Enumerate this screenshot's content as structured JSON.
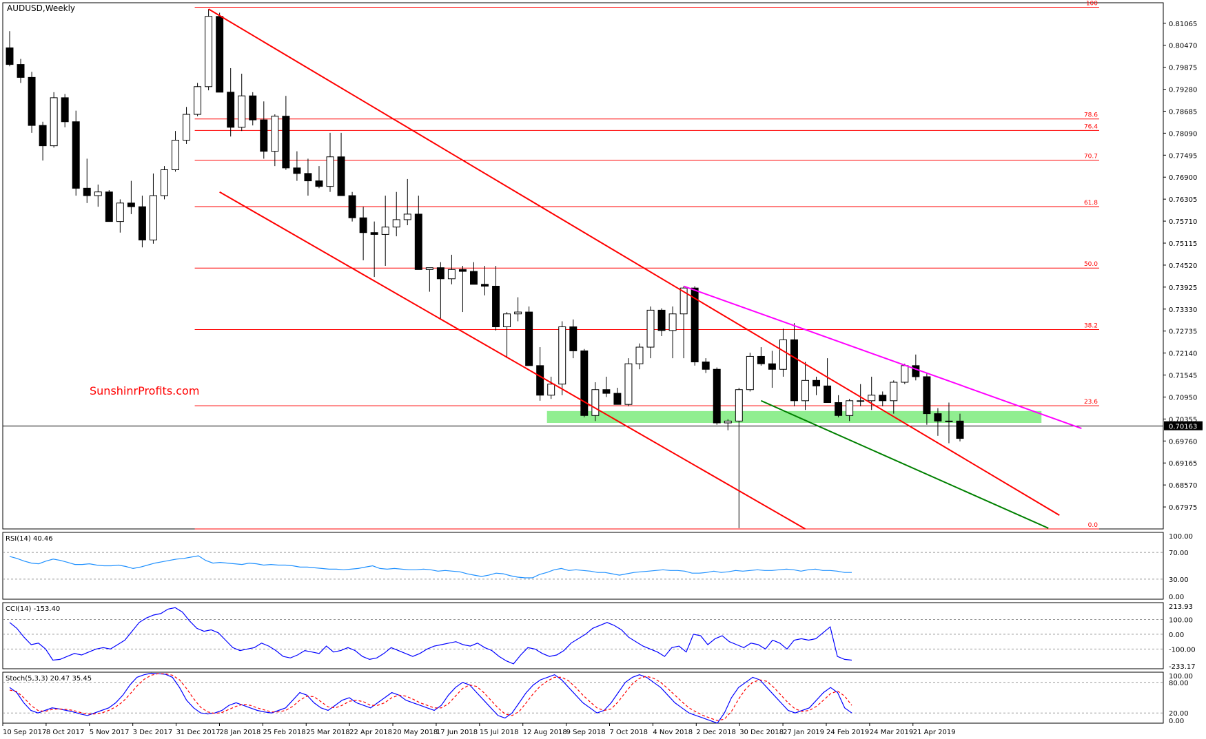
{
  "chart_data": {
    "type": "candlestick",
    "title": "AUDUSD,Weekly",
    "watermark": "SunshinrProfits.com",
    "price_axis": {
      "range": [
        0.6738,
        0.8162
      ],
      "ticks": [
        "0.81065",
        "0.80470",
        "0.79875",
        "0.79280",
        "0.78685",
        "0.78090",
        "0.77495",
        "0.76900",
        "0.76305",
        "0.75710",
        "0.75115",
        "0.74520",
        "0.73925",
        "0.73330",
        "0.72735",
        "0.72140",
        "0.71545",
        "0.70950",
        "0.70355",
        "0.69760",
        "0.69165",
        "0.68570",
        "0.67975"
      ],
      "current_price": "0.70163"
    },
    "x_labels": [
      "10 Sep 2017",
      "8 Oct 2017",
      "5 Nov 2017",
      "3 Dec 2017",
      "31 Dec 2017",
      "28 Jan 2018",
      "25 Feb 2018",
      "25 Mar 2018",
      "22 Apr 2018",
      "20 May 2018",
      "17 Jun 2018",
      "15 Jul 2018",
      "12 Aug 2018",
      "9 Sep 2018",
      "7 Oct 2018",
      "4 Nov 2018",
      "2 Dec 2018",
      "30 Dec 2018",
      "27 Jan 2019",
      "24 Feb 2019",
      "24 Mar 2019",
      "21 Apr 2019"
    ],
    "candles": [
      [
        0.804,
        0.8085,
        0.799,
        0.7995
      ],
      [
        0.7995,
        0.801,
        0.7945,
        0.796
      ],
      [
        0.796,
        0.7975,
        0.781,
        0.783
      ],
      [
        0.783,
        0.784,
        0.7735,
        0.7775
      ],
      [
        0.7775,
        0.792,
        0.777,
        0.7905
      ],
      [
        0.7905,
        0.7915,
        0.7825,
        0.784
      ],
      [
        0.784,
        0.787,
        0.764,
        0.766
      ],
      [
        0.766,
        0.774,
        0.762,
        0.764
      ],
      [
        0.764,
        0.767,
        0.761,
        0.765
      ],
      [
        0.765,
        0.7655,
        0.757,
        0.757
      ],
      [
        0.757,
        0.763,
        0.754,
        0.762
      ],
      [
        0.762,
        0.768,
        0.759,
        0.761
      ],
      [
        0.761,
        0.764,
        0.75,
        0.752
      ],
      [
        0.752,
        0.77,
        0.751,
        0.764
      ],
      [
        0.764,
        0.772,
        0.763,
        0.771
      ],
      [
        0.771,
        0.7815,
        0.7705,
        0.779
      ],
      [
        0.779,
        0.788,
        0.778,
        0.786
      ],
      [
        0.786,
        0.7945,
        0.7855,
        0.7935
      ],
      [
        0.7935,
        0.8145,
        0.7925,
        0.8125
      ],
      [
        0.8125,
        0.8135,
        0.792,
        0.792
      ],
      [
        0.792,
        0.7985,
        0.78,
        0.7825
      ],
      [
        0.7825,
        0.797,
        0.7815,
        0.791
      ],
      [
        0.791,
        0.792,
        0.783,
        0.7845
      ],
      [
        0.7845,
        0.7895,
        0.774,
        0.776
      ],
      [
        0.776,
        0.786,
        0.772,
        0.7855
      ],
      [
        0.7855,
        0.791,
        0.771,
        0.7715
      ],
      [
        0.7715,
        0.776,
        0.768,
        0.77
      ],
      [
        0.77,
        0.774,
        0.764,
        0.768
      ],
      [
        0.768,
        0.772,
        0.766,
        0.7665
      ],
      [
        0.7665,
        0.781,
        0.765,
        0.7745
      ],
      [
        0.7745,
        0.781,
        0.764,
        0.764
      ],
      [
        0.764,
        0.765,
        0.757,
        0.758
      ],
      [
        0.758,
        0.761,
        0.7465,
        0.754
      ],
      [
        0.754,
        0.757,
        0.742,
        0.7535
      ],
      [
        0.7535,
        0.764,
        0.745,
        0.7555
      ],
      [
        0.7555,
        0.765,
        0.753,
        0.7575
      ],
      [
        0.7575,
        0.7685,
        0.756,
        0.759
      ],
      [
        0.759,
        0.764,
        0.744,
        0.744
      ],
      [
        0.744,
        0.7445,
        0.738,
        0.7445
      ],
      [
        0.7445,
        0.746,
        0.7305,
        0.7415
      ],
      [
        0.7415,
        0.748,
        0.74,
        0.744
      ],
      [
        0.744,
        0.745,
        0.7325,
        0.7435
      ],
      [
        0.7435,
        0.746,
        0.74,
        0.74
      ],
      [
        0.74,
        0.745,
        0.737,
        0.7395
      ],
      [
        0.7395,
        0.745,
        0.7275,
        0.7285
      ],
      [
        0.7285,
        0.7325,
        0.72,
        0.732
      ],
      [
        0.732,
        0.7365,
        0.73,
        0.7325
      ],
      [
        0.7325,
        0.734,
        0.718,
        0.718
      ],
      [
        0.718,
        0.723,
        0.7085,
        0.71
      ],
      [
        0.71,
        0.715,
        0.709,
        0.713
      ],
      [
        0.713,
        0.73,
        0.71,
        0.7285
      ],
      [
        0.7285,
        0.7305,
        0.72,
        0.722
      ],
      [
        0.722,
        0.7225,
        0.704,
        0.7045
      ],
      [
        0.7045,
        0.7135,
        0.703,
        0.7115
      ],
      [
        0.7115,
        0.715,
        0.7095,
        0.7105
      ],
      [
        0.7105,
        0.712,
        0.708,
        0.7075
      ],
      [
        0.7075,
        0.72,
        0.707,
        0.7185
      ],
      [
        0.7185,
        0.724,
        0.717,
        0.723
      ],
      [
        0.723,
        0.734,
        0.72,
        0.733
      ],
      [
        0.733,
        0.7335,
        0.726,
        0.7275
      ],
      [
        0.7275,
        0.734,
        0.72,
        0.732
      ],
      [
        0.732,
        0.7395,
        0.72,
        0.739
      ],
      [
        0.739,
        0.7395,
        0.718,
        0.719
      ],
      [
        0.719,
        0.72,
        0.716,
        0.717
      ],
      [
        0.717,
        0.7175,
        0.702,
        0.7025
      ],
      [
        0.7025,
        0.7035,
        0.7005,
        0.703
      ],
      [
        0.703,
        0.712,
        0.674,
        0.7115
      ],
      [
        0.7115,
        0.7215,
        0.711,
        0.7205
      ],
      [
        0.7205,
        0.723,
        0.718,
        0.7185
      ],
      [
        0.7185,
        0.722,
        0.712,
        0.717
      ],
      [
        0.717,
        0.728,
        0.715,
        0.725
      ],
      [
        0.725,
        0.7295,
        0.707,
        0.7085
      ],
      [
        0.7085,
        0.719,
        0.706,
        0.714
      ],
      [
        0.714,
        0.715,
        0.71,
        0.7125
      ],
      [
        0.7125,
        0.72,
        0.7085,
        0.708
      ],
      [
        0.708,
        0.71,
        0.704,
        0.7045
      ],
      [
        0.7045,
        0.709,
        0.703,
        0.7085
      ],
      [
        0.7085,
        0.713,
        0.707,
        0.7085
      ],
      [
        0.7085,
        0.715,
        0.706,
        0.71
      ],
      [
        0.71,
        0.711,
        0.707,
        0.7085
      ],
      [
        0.7085,
        0.714,
        0.705,
        0.7135
      ],
      [
        0.7135,
        0.7185,
        0.713,
        0.718
      ],
      [
        0.718,
        0.721,
        0.714,
        0.715
      ],
      [
        0.715,
        0.716,
        0.702,
        0.705
      ],
      [
        0.705,
        0.7065,
        0.699,
        0.703
      ],
      [
        0.703,
        0.708,
        0.697,
        0.703
      ],
      [
        0.703,
        0.705,
        0.6975,
        0.6983
      ]
    ],
    "fibonacci": {
      "high": 0.815,
      "low": 0.6738,
      "levels": [
        {
          "label": "100",
          "value": 0.815
        },
        {
          "label": "78.6",
          "value": 0.78475
        },
        {
          "label": "76.4",
          "value": 0.78165
        },
        {
          "label": "70.7",
          "value": 0.7736
        },
        {
          "label": "61.8",
          "value": 0.76104
        },
        {
          "label": "50.0",
          "value": 0.7444
        },
        {
          "label": "38.2",
          "value": 0.72776
        },
        {
          "label": "23.6",
          "value": 0.70715
        },
        {
          "label": "0.0",
          "value": 0.6738
        }
      ]
    },
    "support_zone": [
      0.7025,
      0.7057
    ],
    "trendlines": [
      {
        "name": "channel-upper",
        "color": "#ff0000",
        "from": [
          18,
          0.8145
        ],
        "to": [
          95,
          0.6775
        ]
      },
      {
        "name": "channel-lower",
        "color": "#ff0000",
        "from": [
          19,
          0.765
        ],
        "to": [
          72,
          0.6738
        ]
      },
      {
        "name": "resistance",
        "color": "#ff00ff",
        "from": [
          61,
          0.7395
        ],
        "to": [
          97,
          0.701
        ]
      },
      {
        "name": "green-support",
        "color": "#008000",
        "from": [
          68,
          0.7085
        ],
        "to": [
          94,
          0.674
        ]
      }
    ],
    "rsi": {
      "label": "RSI(14) 40.46",
      "ticks": [
        "100.00",
        "70.00",
        "30.00",
        "0.00"
      ],
      "range": [
        0,
        100
      ],
      "levels": [
        70,
        30
      ],
      "values": [
        64,
        61,
        57,
        54,
        53,
        57,
        60,
        58,
        55,
        52,
        52,
        53,
        51,
        50,
        50,
        51,
        49,
        46,
        48,
        51,
        54,
        56,
        58,
        60,
        61,
        63,
        65,
        58,
        54,
        55,
        54,
        53,
        52,
        54,
        53,
        51,
        52,
        51,
        51,
        50,
        48,
        48,
        47,
        46,
        45,
        45,
        44,
        45,
        46,
        48,
        50,
        46,
        45,
        46,
        45,
        44,
        44,
        45,
        44,
        42,
        43,
        42,
        41,
        38,
        36,
        34,
        36,
        39,
        38,
        35,
        33,
        32,
        32,
        37,
        40,
        44,
        46,
        43,
        44,
        43,
        42,
        40,
        40,
        38,
        36,
        38,
        40,
        41,
        42,
        43,
        44,
        43,
        43,
        42,
        39,
        39,
        40,
        42,
        40,
        41,
        43,
        42,
        43,
        44,
        43,
        43,
        44,
        45,
        44,
        42,
        44,
        45,
        43,
        43,
        42,
        40,
        40
      ]
    },
    "cci": {
      "label": "CCI(14) -153.40",
      "ticks": [
        "213.93",
        "100.00",
        "0.00",
        "-100.00",
        "-233.17"
      ],
      "range": [
        -233.17,
        213.93
      ],
      "levels": [
        100,
        0,
        -100
      ],
      "values": [
        80,
        40,
        -20,
        -70,
        -60,
        -100,
        -175,
        -170,
        -150,
        -130,
        -140,
        -120,
        -100,
        -90,
        -100,
        -70,
        -40,
        20,
        80,
        110,
        130,
        140,
        170,
        180,
        150,
        90,
        40,
        20,
        30,
        10,
        -40,
        -90,
        -110,
        -100,
        -90,
        -60,
        -80,
        -110,
        -150,
        -160,
        -140,
        -110,
        -120,
        -130,
        -80,
        -120,
        -110,
        -90,
        -110,
        -150,
        -170,
        -160,
        -130,
        -90,
        -110,
        -130,
        -150,
        -130,
        -100,
        -80,
        -70,
        -60,
        -50,
        -70,
        -80,
        -60,
        -90,
        -110,
        -150,
        -180,
        -200,
        -140,
        -90,
        -100,
        -130,
        -150,
        -140,
        -110,
        -60,
        -30,
        0,
        40,
        60,
        80,
        60,
        30,
        -20,
        -50,
        -80,
        -100,
        -120,
        -150,
        -90,
        -80,
        -120,
        0,
        -10,
        -70,
        -30,
        -10,
        -50,
        -70,
        -90,
        -60,
        -70,
        -100,
        -40,
        -60,
        -100,
        -40,
        -30,
        -40,
        -30,
        10,
        50,
        -150,
        -170,
        -175
      ]
    },
    "stoch": {
      "label": "Stoch(5,3,3) 20.47 35.45",
      "ticks": [
        "100.00",
        "80.00",
        "20.00",
        "0.00"
      ],
      "range": [
        0,
        100
      ],
      "levels": [
        80,
        20
      ],
      "k": [
        70,
        60,
        40,
        25,
        20,
        25,
        30,
        28,
        25,
        22,
        18,
        15,
        20,
        25,
        30,
        40,
        55,
        75,
        90,
        95,
        98,
        97,
        96,
        90,
        70,
        45,
        30,
        20,
        18,
        20,
        25,
        35,
        40,
        35,
        30,
        25,
        22,
        20,
        25,
        30,
        45,
        60,
        55,
        40,
        30,
        25,
        35,
        45,
        50,
        40,
        35,
        30,
        40,
        50,
        60,
        55,
        45,
        40,
        35,
        30,
        25,
        35,
        55,
        70,
        80,
        75,
        60,
        45,
        30,
        15,
        10,
        20,
        40,
        60,
        75,
        85,
        90,
        95,
        85,
        70,
        55,
        40,
        30,
        20,
        25,
        40,
        60,
        80,
        90,
        95,
        90,
        80,
        70,
        55,
        40,
        30,
        20,
        15,
        10,
        5,
        0,
        20,
        50,
        70,
        80,
        90,
        85,
        70,
        55,
        40,
        25,
        20,
        25,
        30,
        45,
        60,
        70,
        60,
        30,
        20
      ],
      "d": [
        65,
        62,
        50,
        35,
        25,
        23,
        27,
        28,
        27,
        25,
        21,
        18,
        18,
        20,
        25,
        32,
        42,
        57,
        73,
        86,
        94,
        97,
        97,
        94,
        85,
        68,
        48,
        31,
        22,
        19,
        21,
        27,
        33,
        37,
        35,
        30,
        26,
        22,
        22,
        25,
        33,
        45,
        53,
        52,
        42,
        32,
        30,
        35,
        43,
        45,
        42,
        35,
        35,
        40,
        50,
        55,
        53,
        47,
        40,
        35,
        30,
        30,
        38,
        53,
        68,
        75,
        72,
        60,
        45,
        30,
        18,
        15,
        23,
        40,
        58,
        73,
        83,
        90,
        90,
        83,
        70,
        55,
        42,
        30,
        25,
        28,
        42,
        60,
        77,
        88,
        92,
        88,
        80,
        68,
        55,
        42,
        30,
        22,
        15,
        10,
        5,
        8,
        23,
        47,
        67,
        80,
        85,
        82,
        70,
        55,
        40,
        28,
        23,
        25,
        33,
        45,
        58,
        63,
        53,
        35
      ]
    }
  }
}
